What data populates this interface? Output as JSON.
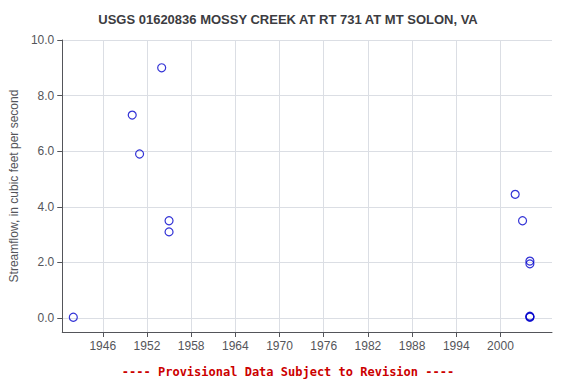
{
  "chart_data": {
    "type": "scatter",
    "title": "USGS 01620836 MOSSY CREEK AT RT 731 AT MT SOLON, VA",
    "ylabel": "Streamflow, in cubic feet per second",
    "x": [
      1942,
      1950,
      1951,
      1954,
      1955,
      1955,
      2002,
      2003,
      2004,
      2004,
      2004,
      2004,
      2004
    ],
    "values": [
      0.03,
      7.3,
      5.9,
      9.0,
      3.5,
      3.1,
      4.45,
      3.5,
      1.95,
      2.05,
      0.03,
      0.05,
      0.07
    ],
    "color": "#0000CC",
    "marker": "open circle",
    "xlim": [
      1940.5,
      2007
    ],
    "xticks": [
      1946,
      1952,
      1958,
      1964,
      1970,
      1976,
      1982,
      1988,
      1994,
      2000
    ],
    "ylim": [
      -0.5,
      10.0
    ],
    "yticks": [
      {
        "value": 0.0,
        "label": "0.0"
      },
      {
        "value": 2.0,
        "label": "2.0"
      },
      {
        "value": 4.0,
        "label": "4.0"
      },
      {
        "value": 6.0,
        "label": "6.0"
      },
      {
        "value": 8.0,
        "label": "8.0"
      },
      {
        "value": 10.0,
        "label": "10.0"
      }
    ],
    "grid": true,
    "annotations": [
      {
        "text": "---- Provisional Data Subject to Revision ----",
        "color": "#CC0000"
      }
    ]
  }
}
